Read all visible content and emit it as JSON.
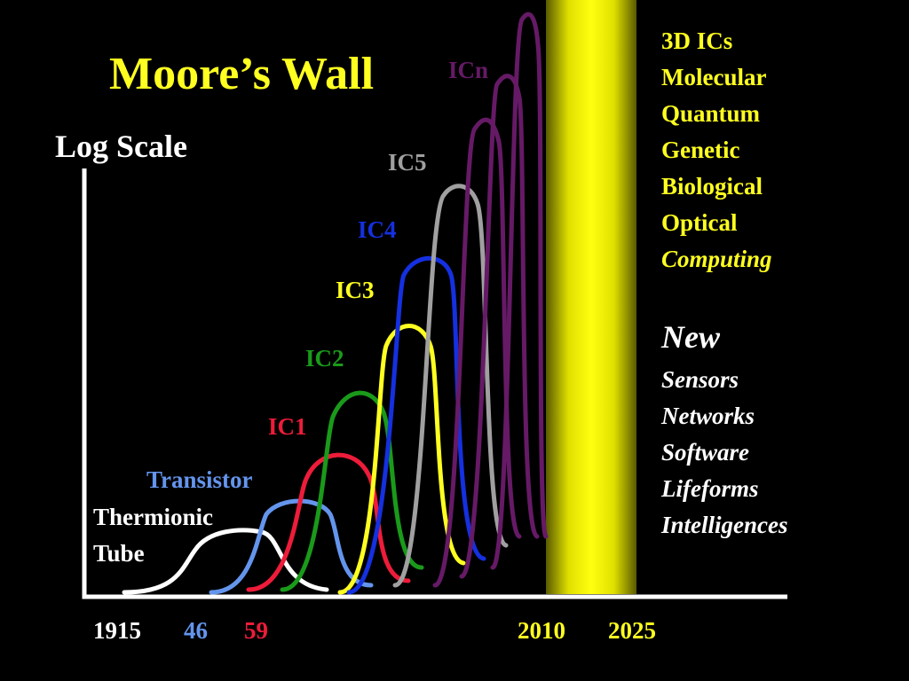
{
  "title": "Moore’s Wall",
  "axis_label": "Log Scale",
  "curve_labels": [
    "ICn",
    "IC5",
    "IC4",
    "IC3",
    "IC2",
    "IC1",
    "Transistor",
    "Thermionic",
    "Tube"
  ],
  "years": [
    "1915",
    "46",
    "59",
    "2010",
    "2025"
  ],
  "computing": [
    "3D ICs",
    "Molecular",
    "Quantum",
    "Genetic",
    "Biological",
    "Optical",
    "Computing"
  ],
  "new": [
    "New",
    "Sensors",
    "Networks",
    "Software",
    "Lifeforms",
    "Intelligences"
  ]
}
